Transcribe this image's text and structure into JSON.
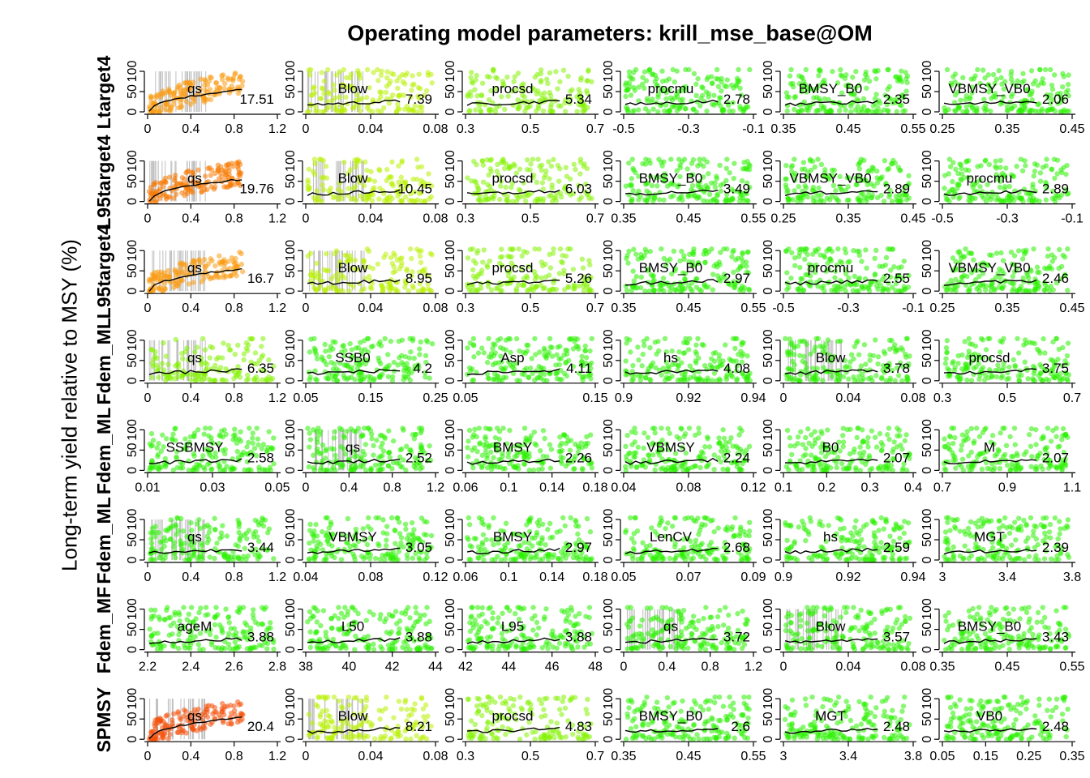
{
  "title": "Operating model parameters: krill_mse_base@OM",
  "ylabel": "Long-term yield relative to MSY (%)",
  "colors": {
    "qs_high": "#f4500b",
    "qs_mid": "#f99a10",
    "high_orange": "#f77800",
    "yellow_green": "#b8f000",
    "lime": "#84f200",
    "green": "#29f000",
    "axis": "#000000",
    "grid": "#bfbfbf"
  },
  "chart_data": {
    "type": "scatter",
    "description_note": "",
    "ylim": [
      0,
      100
    ],
    "yticks": [
      "0",
      "50",
      "100"
    ],
    "rows": [
      {
        "label": "Ltarget4",
        "panels": [
          {
            "param": "qs",
            "score": "17.51",
            "color": "#f99a10",
            "xlim": [
              0,
              1.2
            ],
            "xticks": [
              "0",
              "0.4",
              "0.8",
              "1.2"
            ],
            "gridlines": true
          },
          {
            "param": "Blow",
            "score": "7.39",
            "color": "#b8f000",
            "xlim": [
              0,
              0.08
            ],
            "xticks": [
              "0",
              "0.04",
              "0.08"
            ],
            "gridlines": true
          },
          {
            "param": "procsd",
            "score": "5.34",
            "color": "#84f200",
            "xlim": [
              0.3,
              0.7
            ],
            "xticks": [
              "0.3",
              "0.5",
              "0.7"
            ],
            "gridlines": false
          },
          {
            "param": "procmu",
            "score": "2.78",
            "color": "#29f000",
            "xlim": [
              -0.5,
              -0.1
            ],
            "xticks": [
              "-0.5",
              "-0.3",
              "-0.1"
            ],
            "gridlines": false
          },
          {
            "param": "BMSY_B0",
            "score": "2.35",
            "color": "#29f000",
            "xlim": [
              0.35,
              0.55
            ],
            "xticks": [
              "0.35",
              "0.45",
              "0.55"
            ],
            "gridlines": false
          },
          {
            "param": "VBMSY_VB0",
            "score": "2.06",
            "color": "#29f000",
            "xlim": [
              0.25,
              0.45
            ],
            "xticks": [
              "0.25",
              "0.35",
              "0.45"
            ],
            "gridlines": false
          }
        ]
      },
      {
        "label": "L95target4",
        "panels": [
          {
            "param": "qs",
            "score": "19.76",
            "color": "#f77800",
            "xlim": [
              0,
              1.2
            ],
            "xticks": [
              "0",
              "0.4",
              "0.8",
              "1.2"
            ],
            "gridlines": true
          },
          {
            "param": "Blow",
            "score": "10.45",
            "color": "#b8f000",
            "xlim": [
              0,
              0.08
            ],
            "xticks": [
              "0",
              "0.04",
              "0.08"
            ],
            "gridlines": true
          },
          {
            "param": "procsd",
            "score": "6.03",
            "color": "#84f200",
            "xlim": [
              0.3,
              0.7
            ],
            "xticks": [
              "0.3",
              "0.5",
              "0.7"
            ],
            "gridlines": false
          },
          {
            "param": "BMSY_B0",
            "score": "3.49",
            "color": "#29f000",
            "xlim": [
              0.35,
              0.55
            ],
            "xticks": [
              "0.35",
              "0.45",
              "0.55"
            ],
            "gridlines": false
          },
          {
            "param": "VBMSY_VB0",
            "score": "2.89",
            "color": "#29f000",
            "xlim": [
              0.25,
              0.45
            ],
            "xticks": [
              "0.25",
              "0.35",
              "0.45"
            ],
            "gridlines": false
          },
          {
            "param": "procmu",
            "score": "2.89",
            "color": "#29f000",
            "xlim": [
              -0.5,
              -0.1
            ],
            "xticks": [
              "-0.5",
              "-0.3",
              "-0.1"
            ],
            "gridlines": false
          }
        ]
      },
      {
        "label": "L95target4",
        "panels": [
          {
            "param": "qs",
            "score": "16.7",
            "color": "#f99a10",
            "xlim": [
              0,
              1.2
            ],
            "xticks": [
              "0",
              "0.4",
              "0.8",
              "1.2"
            ],
            "gridlines": true
          },
          {
            "param": "Blow",
            "score": "8.95",
            "color": "#b8f000",
            "xlim": [
              0,
              0.08
            ],
            "xticks": [
              "0",
              "0.04",
              "0.08"
            ],
            "gridlines": true
          },
          {
            "param": "procsd",
            "score": "5.26",
            "color": "#84f200",
            "xlim": [
              0.3,
              0.7
            ],
            "xticks": [
              "0.3",
              "0.5",
              "0.7"
            ],
            "gridlines": false
          },
          {
            "param": "BMSY_B0",
            "score": "2.97",
            "color": "#29f000",
            "xlim": [
              0.35,
              0.55
            ],
            "xticks": [
              "0.35",
              "0.45",
              "0.55"
            ],
            "gridlines": false
          },
          {
            "param": "procmu",
            "score": "2.55",
            "color": "#29f000",
            "xlim": [
              -0.5,
              -0.1
            ],
            "xticks": [
              "-0.5",
              "-0.3",
              "-0.1"
            ],
            "gridlines": false
          },
          {
            "param": "VBMSY_VB0",
            "score": "2.46",
            "color": "#29f000",
            "xlim": [
              0.25,
              0.45
            ],
            "xticks": [
              "0.25",
              "0.35",
              "0.45"
            ],
            "gridlines": false
          }
        ]
      },
      {
        "label": "Fdem_ML",
        "panels": [
          {
            "param": "qs",
            "score": "6.35",
            "color": "#84f200",
            "xlim": [
              0,
              1.2
            ],
            "xticks": [
              "0",
              "0.4",
              "0.8",
              "1.2"
            ],
            "gridlines": true
          },
          {
            "param": "SSB0",
            "score": "4.2",
            "color": "#29f000",
            "xlim": [
              0.05,
              0.25
            ],
            "xticks": [
              "0.05",
              "0.15",
              "0.25"
            ],
            "gridlines": false
          },
          {
            "param": "Asp",
            "score": "4.11",
            "color": "#29f000",
            "xlim": [
              0.05,
              0.15
            ],
            "xticks": [
              "0.05",
              "0.15"
            ],
            "gridlines": false
          },
          {
            "param": "hs",
            "score": "4.08",
            "color": "#29f000",
            "xlim": [
              0.9,
              0.94
            ],
            "xticks": [
              "0.9",
              "0.92",
              "0.94"
            ],
            "gridlines": false
          },
          {
            "param": "Blow",
            "score": "3.78",
            "color": "#29f000",
            "xlim": [
              0,
              0.08
            ],
            "xticks": [
              "0",
              "0.04",
              "0.08"
            ],
            "gridlines": true
          },
          {
            "param": "procsd",
            "score": "3.75",
            "color": "#29f000",
            "xlim": [
              0.3,
              0.7
            ],
            "xticks": [
              "0.3",
              "0.5",
              "0.7"
            ],
            "gridlines": false
          }
        ]
      },
      {
        "label": "Fdem_ML",
        "panels": [
          {
            "param": "SSBMSY",
            "score": "2.58",
            "color": "#29f000",
            "xlim": [
              0.01,
              0.05
            ],
            "xticks": [
              "0.01",
              "0.03",
              "0.05"
            ],
            "gridlines": false
          },
          {
            "param": "qs",
            "score": "2.52",
            "color": "#29f000",
            "xlim": [
              0,
              1.2
            ],
            "xticks": [
              "0",
              "0.4",
              "0.8",
              "1.2"
            ],
            "gridlines": true
          },
          {
            "param": "BMSY",
            "score": "2.26",
            "color": "#29f000",
            "xlim": [
              0.06,
              0.18
            ],
            "xticks": [
              "0.06",
              "0.1",
              "0.14",
              "0.18"
            ],
            "gridlines": false
          },
          {
            "param": "VBMSY",
            "score": "2.24",
            "color": "#29f000",
            "xlim": [
              0.04,
              0.12
            ],
            "xticks": [
              "0.04",
              "0.08",
              "0.12"
            ],
            "gridlines": false
          },
          {
            "param": "B0",
            "score": "2.07",
            "color": "#29f000",
            "xlim": [
              0.1,
              0.4
            ],
            "xticks": [
              "0.1",
              "0.2",
              "0.3",
              "0.4"
            ],
            "gridlines": false
          },
          {
            "param": "M",
            "score": "2.07",
            "color": "#29f000",
            "xlim": [
              0.7,
              1.1
            ],
            "xticks": [
              "0.7",
              "0.9",
              "1.1"
            ],
            "gridlines": false
          }
        ]
      },
      {
        "label": "Fdem_ML",
        "panels": [
          {
            "param": "qs",
            "score": "3.44",
            "color": "#29f000",
            "xlim": [
              0,
              1.2
            ],
            "xticks": [
              "0",
              "0.4",
              "0.8",
              "1.2"
            ],
            "gridlines": true
          },
          {
            "param": "VBMSY",
            "score": "3.05",
            "color": "#29f000",
            "xlim": [
              0.04,
              0.12
            ],
            "xticks": [
              "0.04",
              "0.08",
              "0.12"
            ],
            "gridlines": false
          },
          {
            "param": "BMSY",
            "score": "2.97",
            "color": "#29f000",
            "xlim": [
              0.06,
              0.18
            ],
            "xticks": [
              "0.06",
              "0.1",
              "0.14",
              "0.18"
            ],
            "gridlines": false
          },
          {
            "param": "LenCV",
            "score": "2.68",
            "color": "#29f000",
            "xlim": [
              0.05,
              0.09
            ],
            "xticks": [
              "0.05",
              "0.07",
              "0.09"
            ],
            "gridlines": false
          },
          {
            "param": "hs",
            "score": "2.59",
            "color": "#29f000",
            "xlim": [
              0.9,
              0.94
            ],
            "xticks": [
              "0.9",
              "0.92",
              "0.94"
            ],
            "gridlines": false
          },
          {
            "param": "MGT",
            "score": "2.39",
            "color": "#29f000",
            "xlim": [
              3,
              3.8
            ],
            "xticks": [
              "3",
              "3.4",
              "3.8"
            ],
            "gridlines": false
          }
        ]
      },
      {
        "label": "Fdem_MF",
        "panels": [
          {
            "param": "ageM",
            "score": "3.88",
            "color": "#29f000",
            "xlim": [
              2.2,
              2.8
            ],
            "xticks": [
              "2.2",
              "2.4",
              "2.6",
              "2.8"
            ],
            "gridlines": false
          },
          {
            "param": "L50",
            "score": "3.88",
            "color": "#29f000",
            "xlim": [
              38,
              44
            ],
            "xticks": [
              "38",
              "40",
              "42",
              "44"
            ],
            "gridlines": false
          },
          {
            "param": "L95",
            "score": "3.88",
            "color": "#29f000",
            "xlim": [
              42,
              48
            ],
            "xticks": [
              "42",
              "44",
              "46",
              "48"
            ],
            "gridlines": false
          },
          {
            "param": "qs",
            "score": "3.72",
            "color": "#29f000",
            "xlim": [
              0,
              1.2
            ],
            "xticks": [
              "0",
              "0.4",
              "0.8",
              "1.2"
            ],
            "gridlines": true
          },
          {
            "param": "Blow",
            "score": "3.57",
            "color": "#29f000",
            "xlim": [
              0,
              0.08
            ],
            "xticks": [
              "0",
              "0.04",
              "0.08"
            ],
            "gridlines": true
          },
          {
            "param": "BMSY_B0",
            "score": "3.43",
            "color": "#29f000",
            "xlim": [
              0.35,
              0.55
            ],
            "xticks": [
              "0.35",
              "0.45",
              "0.55"
            ],
            "gridlines": false
          }
        ]
      },
      {
        "label": "SPMSY",
        "panels": [
          {
            "param": "qs",
            "score": "20.4",
            "color": "#f4500b",
            "xlim": [
              0,
              1.2
            ],
            "xticks": [
              "0",
              "0.4",
              "0.8",
              "1.2"
            ],
            "gridlines": true
          },
          {
            "param": "Blow",
            "score": "8.21",
            "color": "#b8f000",
            "xlim": [
              0,
              0.08
            ],
            "xticks": [
              "0",
              "0.04",
              "0.08"
            ],
            "gridlines": true
          },
          {
            "param": "procsd",
            "score": "4.83",
            "color": "#84f200",
            "xlim": [
              0.3,
              0.7
            ],
            "xticks": [
              "0.3",
              "0.5",
              "0.7"
            ],
            "gridlines": false
          },
          {
            "param": "BMSY_B0",
            "score": "2.6",
            "color": "#29f000",
            "xlim": [
              0.35,
              0.55
            ],
            "xticks": [
              "0.35",
              "0.45",
              "0.55"
            ],
            "gridlines": false
          },
          {
            "param": "MGT",
            "score": "2.48",
            "color": "#29f000",
            "xlim": [
              3,
              3.8
            ],
            "xticks": [
              "3",
              "3.4",
              "3.8"
            ],
            "gridlines": false
          },
          {
            "param": "VB0",
            "score": "2.48",
            "color": "#29f000",
            "xlim": [
              0.05,
              0.35
            ],
            "xticks": [
              "0.05",
              "0.15",
              "0.25",
              "0.35"
            ],
            "gridlines": false
          }
        ]
      }
    ]
  }
}
